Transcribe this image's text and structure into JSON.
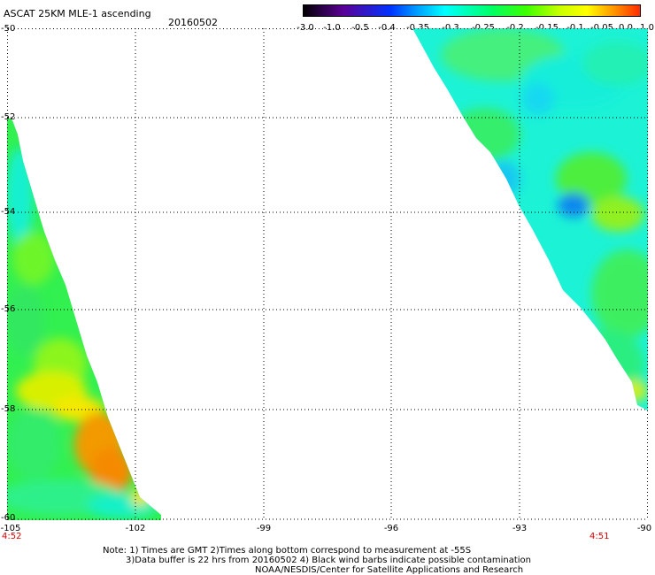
{
  "header": {
    "title": "ASCAT 25KM MLE-1 ascending",
    "date": "20160502"
  },
  "colorbar": {
    "labels": [
      "-3.0",
      "-1.0",
      "-0.5",
      "-0.4",
      "-0.35",
      "-0.3",
      "-0.25",
      "-0.2",
      "-0.15",
      "-0.1",
      "-0.05",
      "0.0",
      "1.0"
    ],
    "colors": [
      "#000000",
      "#5a0096",
      "#0033ff",
      "#00a0ff",
      "#00ffff",
      "#00ff64",
      "#3cff00",
      "#c8ff00",
      "#ffff00",
      "#ff9600",
      "#ff2800"
    ]
  },
  "map": {
    "lat_labels": [
      "-50",
      "-52",
      "-54",
      "-56",
      "-58",
      "-60"
    ],
    "lon_labels": [
      "-105",
      "-102",
      "-99",
      "-96",
      "-93",
      "-90"
    ],
    "times": {
      "left": "4:52",
      "right": "4:51"
    },
    "colors": {
      "background": "#ffffff",
      "grid": "#000000",
      "time_label": "#d40000"
    }
  },
  "notes": {
    "line1": "Note: 1) Times are GMT 2)Times along bottom correspond to measurement at -55S",
    "line2": "3)Data buffer is 22 hrs from 20160502 4) Black wind barbs indicate possible contamination",
    "line3": "NOAA/NESDIS/Center for Satellite Applications and Research"
  }
}
